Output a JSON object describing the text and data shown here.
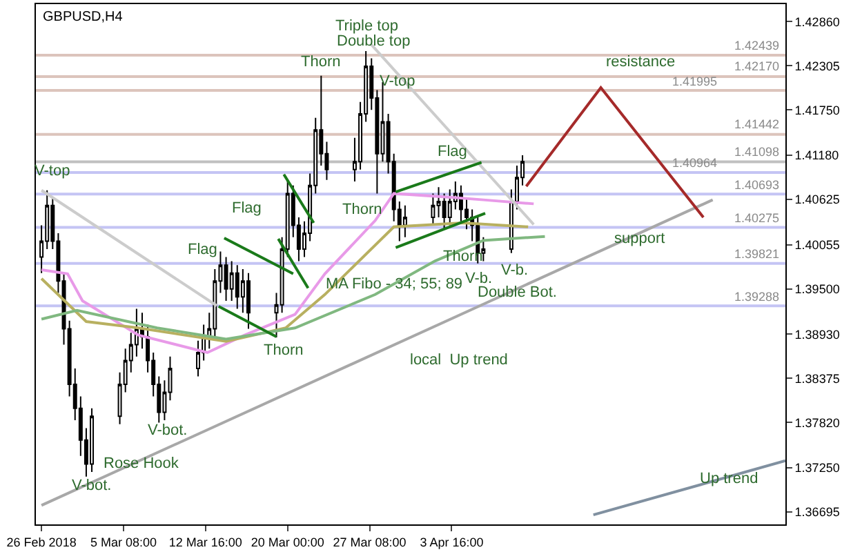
{
  "chart_data": {
    "type": "candlestick",
    "title": "GBPUSD,H4",
    "x": [
      "2018-02-26T00:00",
      "2018-02-26T12:00",
      "2018-02-27T00:00",
      "2018-02-27T12:00",
      "2018-02-28T00:00",
      "2018-02-28T12:00",
      "2018-03-01T00:00",
      "2018-03-01T12:00",
      "2018-03-02T00:00",
      "2018-03-02T12:00",
      "2018-03-05T00:00",
      "2018-03-05T12:00",
      "2018-03-06T00:00",
      "2018-03-06T12:00",
      "2018-03-07T00:00",
      "2018-03-07T12:00",
      "2018-03-08T00:00",
      "2018-03-08T12:00",
      "2018-03-09T00:00",
      "2018-03-09T12:00",
      "2018-03-12T00:00",
      "2018-03-12T12:00",
      "2018-03-13T00:00",
      "2018-03-13T12:00",
      "2018-03-14T00:00",
      "2018-03-14T12:00",
      "2018-03-15T00:00",
      "2018-03-15T12:00",
      "2018-03-16T00:00",
      "2018-03-16T12:00",
      "2018-03-19T00:00",
      "2018-03-19T12:00",
      "2018-03-20T00:00",
      "2018-03-20T12:00",
      "2018-03-21T00:00",
      "2018-03-21T12:00",
      "2018-03-22T00:00",
      "2018-03-22T12:00",
      "2018-03-23T00:00",
      "2018-03-23T12:00",
      "2018-03-26T00:00",
      "2018-03-26T12:00",
      "2018-03-27T00:00",
      "2018-03-27T12:00",
      "2018-03-28T00:00",
      "2018-03-28T12:00",
      "2018-03-29T00:00",
      "2018-03-29T12:00",
      "2018-03-30T00:00",
      "2018-03-30T12:00",
      "2018-04-02T00:00",
      "2018-04-02T12:00",
      "2018-04-03T00:00",
      "2018-04-03T12:00",
      "2018-04-04T00:00",
      "2018-04-04T12:00",
      "2018-04-05T00:00",
      "2018-04-05T12:00",
      "2018-04-06T00:00",
      "2018-04-06T12:00",
      "2018-04-09T00:00",
      "2018-04-09T12:00",
      "2018-04-10T00:00"
    ],
    "ohlc": [
      [
        1.399,
        1.403,
        1.397,
        1.401
      ],
      [
        1.401,
        1.4074,
        1.4,
        1.4055
      ],
      [
        1.4055,
        1.4065,
        1.4,
        1.401
      ],
      [
        1.401,
        1.402,
        1.3945,
        1.396
      ],
      [
        1.396,
        1.397,
        1.388,
        1.39
      ],
      [
        1.39,
        1.391,
        1.3815,
        1.383
      ],
      [
        1.383,
        1.385,
        1.3785,
        1.38
      ],
      [
        1.38,
        1.3815,
        1.374,
        1.376
      ],
      [
        1.376,
        1.3775,
        1.3714,
        1.373
      ],
      [
        1.373,
        1.38,
        1.372,
        1.379
      ],
      [
        1.379,
        1.3845,
        1.378,
        1.383
      ],
      [
        1.383,
        1.3875,
        1.382,
        1.386
      ],
      [
        1.386,
        1.3895,
        1.3845,
        1.388
      ],
      [
        1.388,
        1.3925,
        1.3865,
        1.39
      ],
      [
        1.39,
        1.392,
        1.3875,
        1.389
      ],
      [
        1.389,
        1.3905,
        1.3845,
        1.386
      ],
      [
        1.386,
        1.387,
        1.3815,
        1.383
      ],
      [
        1.383,
        1.384,
        1.3782,
        1.3795
      ],
      [
        1.3795,
        1.3835,
        1.3785,
        1.382
      ],
      [
        1.382,
        1.3865,
        1.381,
        1.385
      ],
      [
        1.385,
        1.3885,
        1.384,
        1.387
      ],
      [
        1.387,
        1.3905,
        1.386,
        1.389
      ],
      [
        1.389,
        1.392,
        1.3875,
        1.39
      ],
      [
        1.39,
        1.3975,
        1.389,
        1.396
      ],
      [
        1.396,
        1.3997,
        1.3945,
        1.398
      ],
      [
        1.398,
        1.399,
        1.3935,
        1.395
      ],
      [
        1.395,
        1.3985,
        1.3935,
        1.397
      ],
      [
        1.397,
        1.398,
        1.3925,
        1.394
      ],
      [
        1.394,
        1.3975,
        1.392,
        1.396
      ],
      [
        1.396,
        1.397,
        1.39,
        1.392
      ],
      [
        1.392,
        1.3945,
        1.3889,
        1.393
      ],
      [
        1.393,
        1.4015,
        1.392,
        1.4
      ],
      [
        1.4,
        1.4087,
        1.399,
        1.407
      ],
      [
        1.407,
        1.408,
        1.4015,
        1.403
      ],
      [
        1.403,
        1.404,
        1.3985,
        1.4
      ],
      [
        1.4,
        1.4035,
        1.399,
        1.402
      ],
      [
        1.402,
        1.4095,
        1.401,
        1.408
      ],
      [
        1.408,
        1.4165,
        1.407,
        1.415
      ],
      [
        1.415,
        1.4218,
        1.4105,
        1.412
      ],
      [
        1.412,
        1.4135,
        1.4087,
        1.41
      ],
      [
        1.41,
        1.414,
        1.4085,
        1.411
      ],
      [
        1.411,
        1.4185,
        1.41,
        1.417
      ],
      [
        1.417,
        1.4249,
        1.416,
        1.423
      ],
      [
        1.423,
        1.424,
        1.4175,
        1.419
      ],
      [
        1.419,
        1.42,
        1.407,
        1.412
      ],
      [
        1.412,
        1.421,
        1.411,
        1.416
      ],
      [
        1.416,
        1.417,
        1.4095,
        1.411
      ],
      [
        1.411,
        1.412,
        1.4035,
        1.405
      ],
      [
        1.405,
        1.406,
        1.401,
        1.403
      ],
      [
        1.403,
        1.4055,
        1.4015,
        1.404
      ],
      [
        1.404,
        1.407,
        1.403,
        1.4055
      ],
      [
        1.4055,
        1.4078,
        1.404,
        1.406
      ],
      [
        1.406,
        1.407,
        1.4025,
        1.404
      ],
      [
        1.404,
        1.4075,
        1.403,
        1.406
      ],
      [
        1.406,
        1.4085,
        1.405,
        1.407
      ],
      [
        1.407,
        1.408,
        1.4035,
        1.405
      ],
      [
        1.405,
        1.4065,
        1.4025,
        1.404
      ],
      [
        1.404,
        1.405,
        1.401,
        1.403
      ],
      [
        1.403,
        1.404,
        1.3982,
        1.3995
      ],
      [
        1.3995,
        1.4015,
        1.3985,
        1.4
      ],
      [
        1.4,
        1.4075,
        1.3995,
        1.406
      ],
      [
        1.406,
        1.4105,
        1.405,
        1.409
      ],
      [
        1.409,
        1.4118,
        1.408,
        1.411
      ]
    ],
    "color": "#000000",
    "series": [
      {
        "type": "line",
        "color": "#e89ae8",
        "x": [
          "2018-02-26T00:00",
          "2018-02-28T08:00",
          "2018-03-01T16:00",
          "2018-03-06T16:00",
          "2018-03-12T20:00",
          "2018-03-16T04:00",
          "2018-03-20T16:00",
          "2018-03-23T08:00",
          "2018-03-27T20:00",
          "2018-03-29T12:00",
          "2018-04-03T20:00",
          "2018-04-06T12:00",
          "2018-04-11T00:00"
        ],
        "values": [
          1.3974,
          1.3969,
          1.3935,
          1.3892,
          1.387,
          1.3892,
          1.3918,
          1.3969,
          1.4036,
          1.407,
          1.4065,
          1.4062,
          1.4057
        ]
      },
      {
        "type": "line",
        "color": "#b8b060",
        "x": [
          "2018-02-26T00:00",
          "2018-03-02T00:00",
          "2018-03-06T16:00",
          "2018-03-14T12:00",
          "2018-03-19T20:00",
          "2018-03-23T08:00",
          "2018-03-29T12:00",
          "2018-04-04T16:00",
          "2018-04-10T12:00"
        ],
        "values": [
          1.3963,
          1.3909,
          1.3901,
          1.3884,
          1.3901,
          1.3943,
          1.4028,
          1.4033,
          1.4028
        ]
      },
      {
        "type": "line",
        "color": "#80b880",
        "x": [
          "2018-02-26T00:00",
          "2018-03-01T04:00",
          "2018-03-08T08:00",
          "2018-03-14T12:00",
          "2018-03-20T16:00",
          "2018-03-27T20:00",
          "2018-04-02T04:00",
          "2018-04-06T12:00",
          "2018-04-12T00:00"
        ],
        "values": [
          1.3912,
          1.3923,
          1.3901,
          1.3887,
          1.3901,
          1.3943,
          1.3985,
          1.4011,
          1.4016
        ]
      },
      {
        "type": "line",
        "color": "#a8a8a8",
        "x": [
          "2018-02-26T00:00",
          "2018-04-27T00:00"
        ],
        "values": [
          1.3678,
          1.4062
        ]
      },
      {
        "type": "line",
        "color": "#8090a0",
        "x": [
          "2018-04-16T08:00",
          "2018-05-03T12:00"
        ],
        "values": [
          1.3666,
          1.3734
        ]
      },
      {
        "type": "line",
        "color": "#cccccc",
        "x": [
          "2018-02-26T00:00",
          "2018-03-13T16:00"
        ],
        "values": [
          1.4074,
          1.3929
        ]
      },
      {
        "type": "line",
        "color": "#cccccc",
        "x": [
          "2018-03-27T12:00",
          "2018-04-11T00:00"
        ],
        "values": [
          1.4257,
          1.4031
        ]
      },
      {
        "type": "line",
        "color": "#a52a2a",
        "x": [
          "2018-04-10T08:00",
          "2018-04-17T00:00",
          "2018-04-26T04:00"
        ],
        "values": [
          1.4079,
          1.4203,
          1.404
        ]
      },
      {
        "type": "line",
        "color": "#1a7a1a",
        "x": [
          "2018-03-14T08:00",
          "2018-03-20T12:00"
        ],
        "values": [
          1.4014,
          1.3969
        ]
      },
      {
        "type": "line",
        "color": "#1a7a1a",
        "x": [
          "2018-03-13T20:00",
          "2018-03-19T00:00"
        ],
        "values": [
          1.3928,
          1.389
        ]
      },
      {
        "type": "line",
        "color": "#1a7a1a",
        "x": [
          "2018-03-19T16:00",
          "2018-03-22T08:00"
        ],
        "values": [
          1.4094,
          1.4033
        ]
      },
      {
        "type": "line",
        "color": "#1a7a1a",
        "x": [
          "2018-03-19T04:00",
          "2018-03-21T20:00"
        ],
        "values": [
          1.4013,
          1.3951
        ]
      },
      {
        "type": "line",
        "color": "#1a7a1a",
        "x": [
          "2018-03-29T16:00",
          "2018-04-06T08:00"
        ],
        "values": [
          1.4072,
          1.4109
        ]
      },
      {
        "type": "line",
        "color": "#1a7a1a",
        "x": [
          "2018-03-29T16:00",
          "2018-04-06T16:00"
        ],
        "values": [
          1.4002,
          1.4045
        ]
      }
    ],
    "ref_lines": [
      {
        "axis": "y",
        "value": 1.42439,
        "label": "1.42439",
        "color": "#dcc4bc"
      },
      {
        "axis": "y",
        "value": 1.4217,
        "label": "1.42170",
        "color": "#dcc4bc"
      },
      {
        "axis": "y",
        "value": 1.41995,
        "label": "1.41995",
        "color": "#dcc4bc"
      },
      {
        "axis": "y",
        "value": 1.41442,
        "label": "1.41442",
        "color": "#dcc4bc"
      },
      {
        "axis": "y",
        "value": 1.41098,
        "label": "1.41098",
        "color": "#c0c0c0"
      },
      {
        "axis": "y",
        "value": 1.40964,
        "label": "1.40964",
        "color": "#c4c4f4"
      },
      {
        "axis": "y",
        "value": 1.40693,
        "label": "1.40693",
        "color": "#c4c4f4"
      },
      {
        "axis": "y",
        "value": 1.40275,
        "label": "1.40275",
        "color": "#c4c4f4"
      },
      {
        "axis": "y",
        "value": 1.39821,
        "label": "1.39821",
        "color": "#c4c4f4"
      },
      {
        "axis": "y",
        "value": 1.39288,
        "label": "1.39288",
        "color": "#c4c4f4"
      }
    ],
    "annotations": [
      "V-top",
      "V-bot.",
      "Rose Hook",
      "V-bot.",
      "Flag",
      "Flag",
      "Thorn",
      {
        "text": "Thorn",
        "x": "2018-03-23T00:00",
        "y": 1.4218
      },
      "Triple top",
      "Double top",
      "V-top",
      "Thorn",
      "Flag",
      "Thorn",
      "V-b.",
      "V-b.",
      "Double Bot.",
      "MA Fibo - 34; 55; 89",
      "local  Up trend",
      "Up trend",
      "resistance",
      "support"
    ],
    "xlim": [
      "2018-02-25T12:00",
      "2018-05-03T12:00"
    ],
    "xticks": [
      {
        "value": "2018-02-26T00:00",
        "label": "26 Feb 2018"
      },
      {
        "value": "2018-03-05T08:00",
        "label": "5 Mar 08:00"
      },
      {
        "value": "2018-03-12T16:00",
        "label": "12 Mar 16:00"
      },
      {
        "value": "2018-03-20T00:00",
        "label": "20 Mar 00:00"
      },
      {
        "value": "2018-03-27T08:00",
        "label": "27 Mar 08:00"
      },
      {
        "value": "2018-04-03T16:00",
        "label": "3 Apr 16:00"
      }
    ],
    "ylim": [
      1.3654,
      1.4308
    ],
    "yticks": [
      {
        "value": 1.4286,
        "label": "1.42860"
      },
      1.42305,
      {
        "value": 1.4175,
        "label": "1.41750"
      },
      {
        "value": 1.4118,
        "label": "1.41180"
      },
      1.40625,
      1.40055,
      {
        "value": 1.395,
        "label": "1.39500"
      },
      {
        "value": 1.3893,
        "label": "1.38930"
      },
      1.38375,
      {
        "value": 1.3782,
        "label": "1.37820"
      },
      {
        "value": 1.3725,
        "label": "1.37250"
      },
      1.36695
    ],
    "grid": false
  }
}
